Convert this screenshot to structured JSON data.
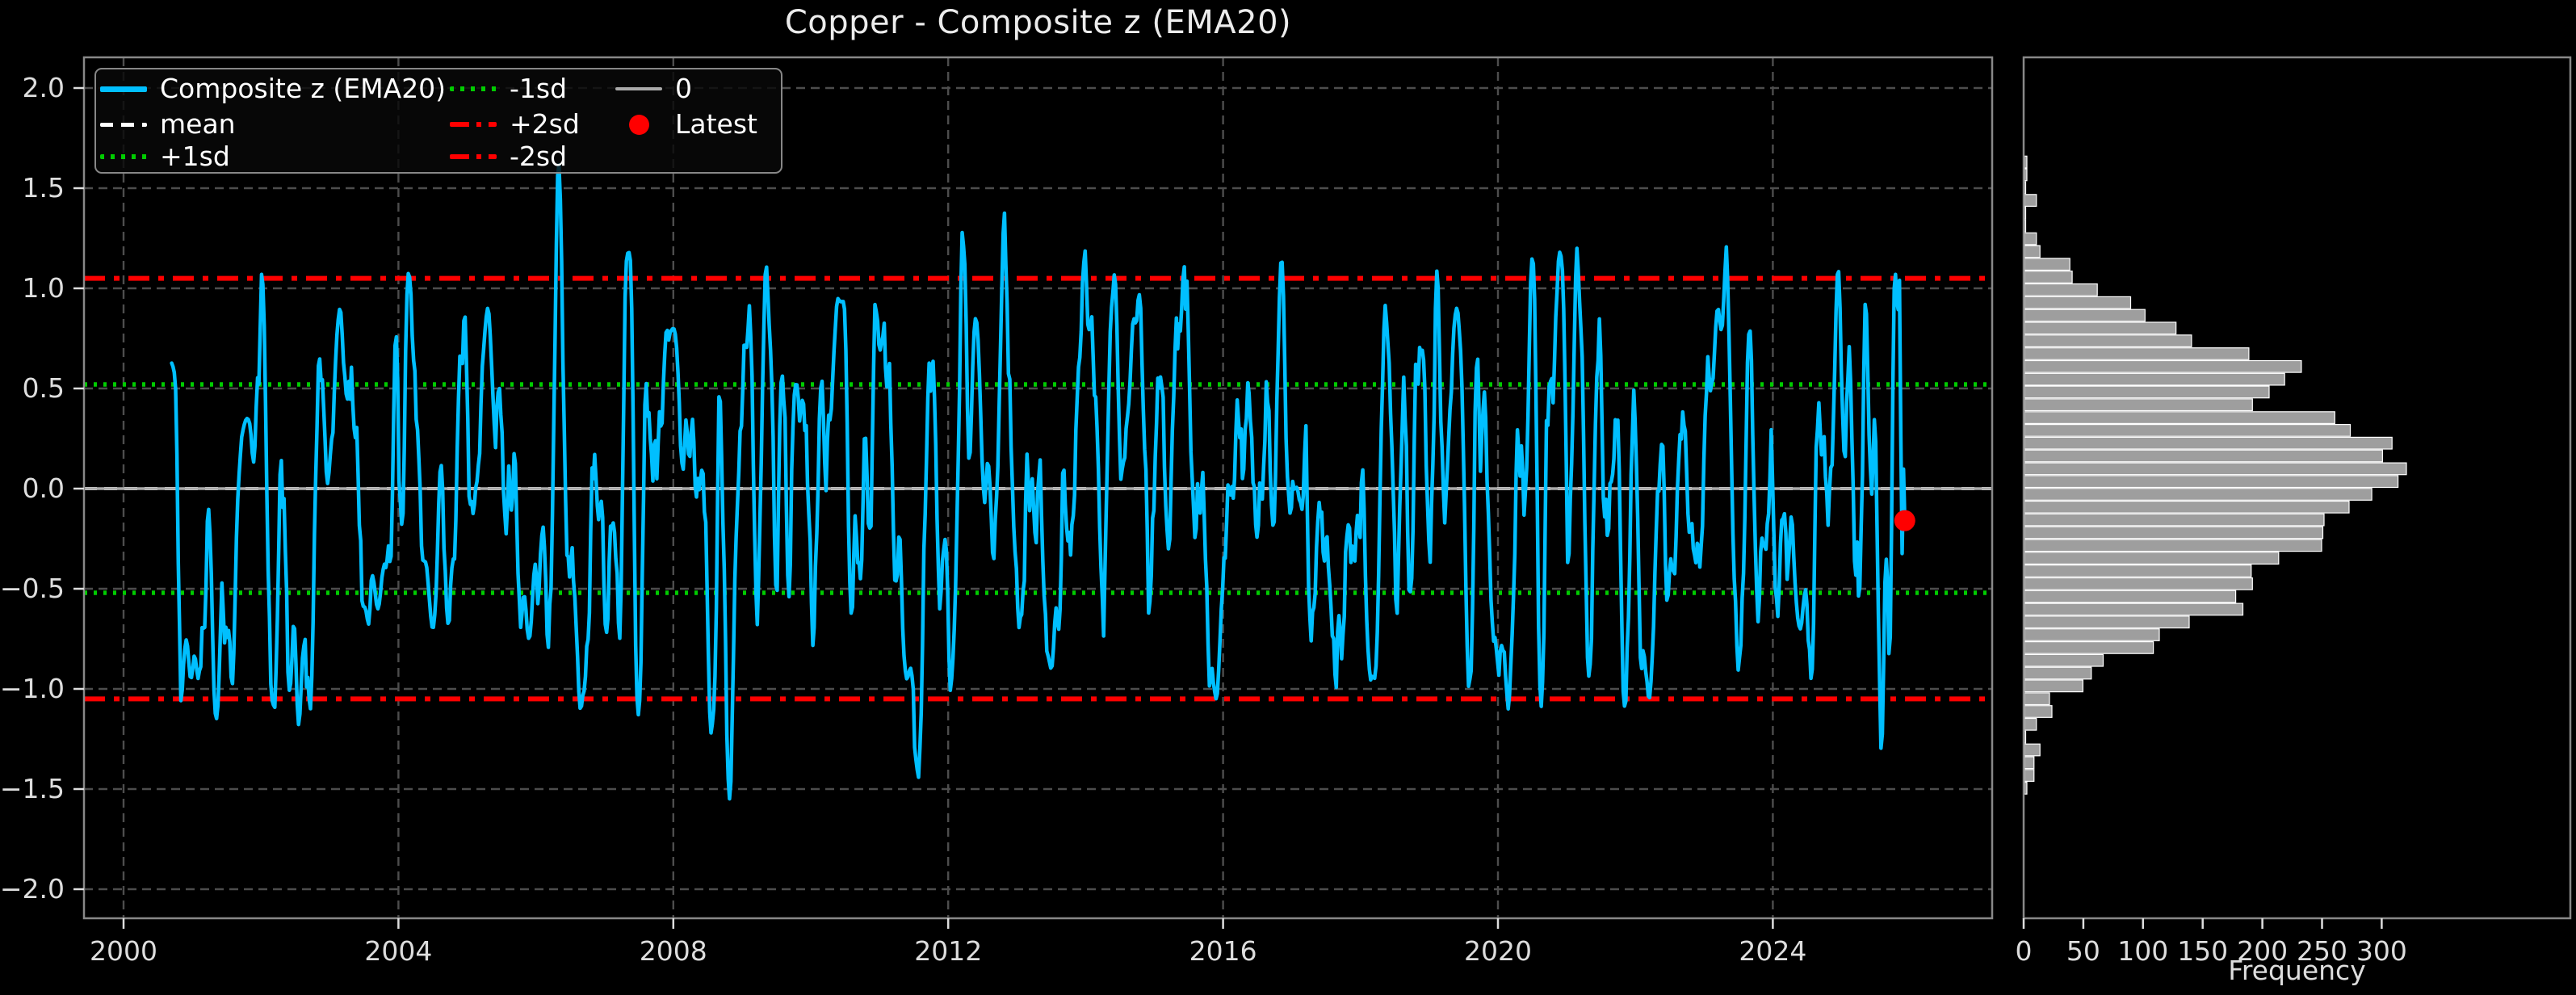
{
  "title": "Copper - Composite z (EMA20)",
  "colors": {
    "background": "#000000",
    "series_line": "#00BFFF",
    "mean_line": "#FFFFFF",
    "sd1_line": "#00CC00",
    "sd2_line": "#FF0000",
    "zero_line": "#AAAAAA",
    "grid": "#4D4D4D",
    "axis_border": "#888888",
    "tick_text": "#DDDDDD",
    "hist_fill": "#9E9E9E",
    "hist_edge": "#FFFFFF",
    "latest_marker": "#FF0000"
  },
  "legend": {
    "items": [
      {
        "label": "Composite z (EMA20)",
        "type": "line-solid",
        "color": "#00BFFF"
      },
      {
        "label": "mean",
        "type": "line-dashed",
        "color": "#FFFFFF"
      },
      {
        "label": "+1sd",
        "type": "line-dotted",
        "color": "#00CC00"
      },
      {
        "label": "-1sd",
        "type": "line-dotted",
        "color": "#00CC00"
      },
      {
        "label": "+2sd",
        "type": "line-dashdot",
        "color": "#FF0000"
      },
      {
        "label": "-2sd",
        "type": "line-dashdot",
        "color": "#FF0000"
      },
      {
        "label": "0",
        "type": "line-solid",
        "color": "#AAAAAA"
      },
      {
        "label": "Latest",
        "type": "marker-circle",
        "color": "#FF0000"
      }
    ]
  },
  "chart_data": [
    {
      "type": "line",
      "title": "Copper - Composite z (EMA20)",
      "xlabel": "",
      "ylabel": "",
      "xlim": [
        1999.4,
        2027.2
      ],
      "ylim": [
        -2.15,
        2.15
      ],
      "xticks": [
        2000,
        2004,
        2008,
        2012,
        2016,
        2020,
        2024
      ],
      "xtick_labels": [
        "2000",
        "2004",
        "2008",
        "2012",
        "2016",
        "2020",
        "2024"
      ],
      "yticks": [
        2.0,
        1.5,
        1.0,
        0.5,
        0.0,
        -0.5,
        -1.0,
        -1.5,
        -2.0
      ],
      "ytick_labels": [
        "2.0",
        "1.5",
        "1.0",
        "0.5",
        "0.0",
        "−0.5",
        "−1.0",
        "−1.5",
        "−2.0"
      ],
      "grid": true,
      "legend_position": "upper left",
      "reference_lines": [
        {
          "name": "mean",
          "value": 0.0,
          "color": "#FFFFFF",
          "style": "dashed"
        },
        {
          "name": "+1sd",
          "value": 0.52,
          "color": "#00CC00",
          "style": "dotted"
        },
        {
          "name": "-1sd",
          "value": -0.52,
          "color": "#00CC00",
          "style": "dotted"
        },
        {
          "name": "+2sd",
          "value": 1.05,
          "color": "#FF0000",
          "style": "dashdot"
        },
        {
          "name": "-2sd",
          "value": -1.05,
          "color": "#FF0000",
          "style": "dashdot"
        },
        {
          "name": "0",
          "value": 0.0,
          "color": "#AAAAAA",
          "style": "solid"
        }
      ],
      "latest_point": {
        "x": 2025.92,
        "y": -0.16,
        "label": "Latest",
        "color": "#FF0000"
      },
      "series": [
        {
          "name": "Composite z (EMA20)",
          "color": "#00BFFF",
          "x_start": 2000.7,
          "x_end": 2025.92,
          "n_points": 1312,
          "observed_features": {
            "start": {
              "x": 2000.7,
              "y": 0.63
            },
            "max": {
              "x": 2006.33,
              "y": 1.63
            },
            "min": {
              "x": 2008.82,
              "y": -1.55
            },
            "end": {
              "x": 2025.92,
              "y": -0.16
            }
          },
          "generator": {
            "seed": 7,
            "ar": [
              1.573,
              -0.72
            ],
            "noise_sd": 0.3,
            "target_sd": 0.52,
            "clip": 1.5
          },
          "shape_anchors": [
            [
              2000.7,
              0.63,
              0.05
            ],
            [
              2000.98,
              -0.95,
              0.08
            ],
            [
              2001.35,
              -1.15,
              0.06
            ],
            [
              2001.8,
              0.35,
              0.1
            ],
            [
              2002.55,
              -1.18,
              0.06
            ],
            [
              2003.15,
              0.9,
              0.07
            ],
            [
              2003.7,
              -0.6,
              0.1
            ],
            [
              2004.15,
              1.08,
              0.06
            ],
            [
              2004.5,
              -0.7,
              0.1
            ],
            [
              2005.3,
              0.9,
              0.08
            ],
            [
              2005.9,
              -0.75,
              0.1
            ],
            [
              2006.33,
              1.63,
              0.04
            ],
            [
              2006.65,
              -1.1,
              0.06
            ],
            [
              2007.35,
              1.18,
              0.05
            ],
            [
              2008.0,
              0.8,
              0.1
            ],
            [
              2008.55,
              -1.22,
              0.05
            ],
            [
              2008.82,
              -1.55,
              0.04
            ],
            [
              2009.35,
              1.12,
              0.05
            ],
            [
              2010.4,
              0.95,
              0.08
            ],
            [
              2011.4,
              -0.95,
              0.08
            ],
            [
              2012.4,
              0.85,
              0.08
            ],
            [
              2013.5,
              -0.9,
              0.08
            ],
            [
              2014.7,
              0.85,
              0.08
            ],
            [
              2015.9,
              -1.05,
              0.07
            ],
            [
              2016.85,
              1.15,
              0.05
            ],
            [
              2018.2,
              -0.95,
              0.08
            ],
            [
              2019.4,
              0.9,
              0.08
            ],
            [
              2020.15,
              -1.1,
              0.06
            ],
            [
              2020.5,
              1.15,
              0.05
            ],
            [
              2020.9,
              1.18,
              0.05
            ],
            [
              2021.15,
              1.2,
              0.05
            ],
            [
              2022.2,
              -1.05,
              0.07
            ],
            [
              2023.2,
              0.9,
              0.08
            ],
            [
              2024.4,
              -0.7,
              0.08
            ],
            [
              2024.95,
              1.1,
              0.05
            ],
            [
              2025.35,
              0.95,
              0.04
            ],
            [
              2025.58,
              -1.32,
              0.04
            ],
            [
              2025.78,
              1.08,
              0.035
            ],
            [
              2025.88,
              -0.33,
              0.02
            ],
            [
              2025.92,
              -0.16,
              0.012
            ]
          ]
        }
      ]
    },
    {
      "type": "bar",
      "orientation": "horizontal",
      "title": "",
      "xlabel": "Frequency",
      "ylabel": "",
      "xlim": [
        0,
        458
      ],
      "ylim": [
        -2.15,
        2.15
      ],
      "xticks": [
        0,
        50,
        100,
        150,
        200,
        250,
        300
      ],
      "xtick_labels": [
        "0",
        "50",
        "100",
        "150",
        "200",
        "250",
        "300"
      ],
      "grid": false,
      "bins": {
        "z_top": 1.66,
        "bin_height": 0.0638,
        "frequencies": [
          2,
          2,
          1,
          10,
          1,
          1,
          10,
          13,
          38,
          40,
          61,
          89,
          101,
          127,
          140,
          188,
          232,
          218,
          205,
          191,
          260,
          273,
          308,
          300,
          320,
          313,
          291,
          272,
          251,
          250,
          249,
          213,
          190,
          191,
          177,
          183,
          138,
          113,
          108,
          66,
          56,
          49,
          21,
          23,
          10,
          1,
          13,
          8,
          8,
          2
        ]
      }
    }
  ]
}
